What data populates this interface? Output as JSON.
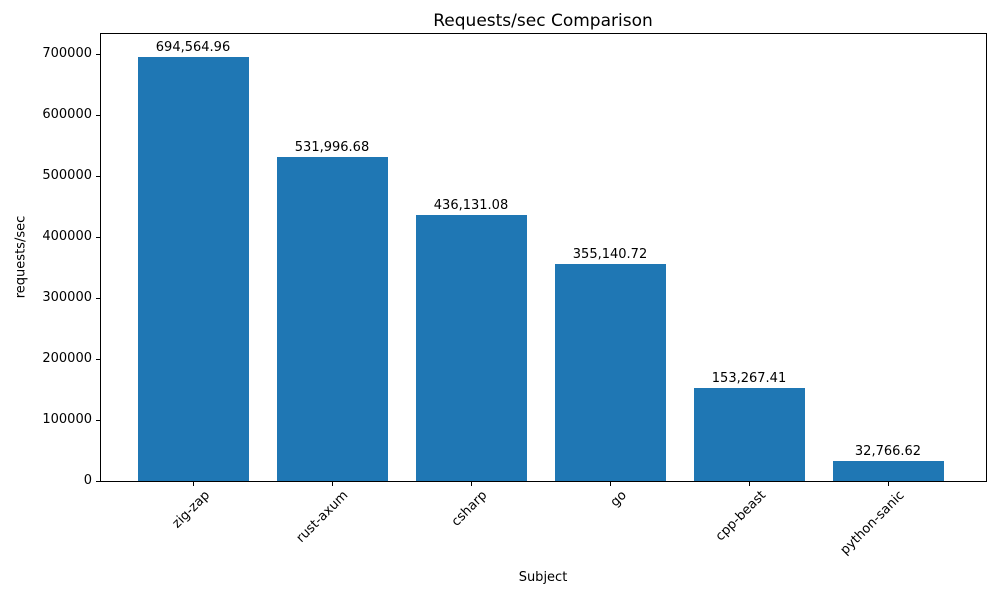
{
  "chart_data": {
    "type": "bar",
    "title": "Requests/sec Comparison",
    "xlabel": "Subject",
    "ylabel": "requests/sec",
    "categories": [
      "zig-zap",
      "rust-axum",
      "csharp",
      "go",
      "cpp-beast",
      "python-sanic"
    ],
    "values": [
      694564.96,
      531996.68,
      436131.08,
      355140.72,
      153267.41,
      32766.62
    ],
    "value_labels": [
      "694,564.96",
      "531,996.68",
      "436,131.08",
      "355,140.72",
      "153,267.41",
      "32,766.62"
    ],
    "yticks": [
      0,
      100000,
      200000,
      300000,
      400000,
      500000,
      600000,
      700000
    ],
    "ytick_labels": [
      "0",
      "100000",
      "200000",
      "300000",
      "400000",
      "500000",
      "600000",
      "700000"
    ],
    "ylim": [
      0,
      736000
    ],
    "x_tick_rotation": 45,
    "grid": false,
    "legend": null,
    "bar_color": "#1f77b4",
    "background_color": "#ffffff",
    "text_color": "#000000"
  }
}
